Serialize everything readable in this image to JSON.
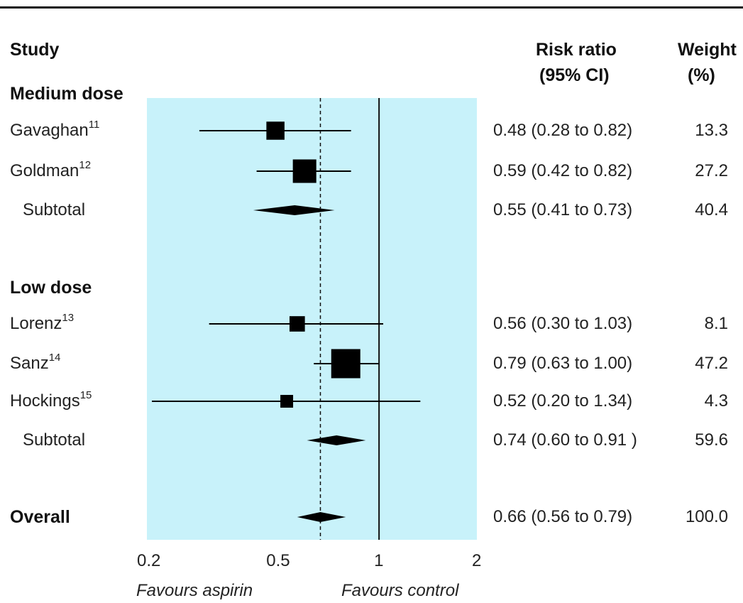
{
  "headers": {
    "study": "Study",
    "risk_ratio_line1": "Risk ratio",
    "risk_ratio_line2": "(95% CI)",
    "weight_line1": "Weight",
    "weight_line2": "(%)"
  },
  "chart_data": {
    "type": "forest",
    "scale": "log",
    "xlim": [
      0.2,
      2
    ],
    "xticks": [
      {
        "value": 0.2,
        "label": "0.2"
      },
      {
        "value": 0.5,
        "label": "0.5"
      },
      {
        "value": 1,
        "label": "1"
      },
      {
        "value": 2,
        "label": "2"
      }
    ],
    "null_line": 1,
    "pooled_line": 0.66,
    "left_label": "Favours aspirin",
    "right_label": "Favours control",
    "groups": [
      {
        "name": "Medium dose",
        "studies": [
          {
            "name": "Gavaghan",
            "ref": "11",
            "rr": 0.48,
            "lo": 0.28,
            "hi": 0.82,
            "ci_text": "0.48 (0.28 to 0.82)",
            "weight": "13.3",
            "w": 13.3
          },
          {
            "name": "Goldman",
            "ref": "12",
            "rr": 0.59,
            "lo": 0.42,
            "hi": 0.82,
            "ci_text": "0.59 (0.42 to 0.82)",
            "weight": "27.2",
            "w": 27.2
          }
        ],
        "subtotal": {
          "label": "Subtotal",
          "rr": 0.55,
          "lo": 0.41,
          "hi": 0.73,
          "ci_text": "0.55 (0.41 to 0.73)",
          "weight": "40.4"
        }
      },
      {
        "name": "Low dose",
        "studies": [
          {
            "name": "Lorenz",
            "ref": "13",
            "rr": 0.56,
            "lo": 0.3,
            "hi": 1.03,
            "ci_text": "0.56 (0.30 to 1.03)",
            "weight": "8.1",
            "w": 8.1
          },
          {
            "name": "Sanz",
            "ref": "14",
            "rr": 0.79,
            "lo": 0.63,
            "hi": 1.0,
            "ci_text": "0.79 (0.63 to 1.00)",
            "weight": "47.2",
            "w": 47.2
          },
          {
            "name": "Hockings",
            "ref": "15",
            "rr": 0.52,
            "lo": 0.2,
            "hi": 1.34,
            "ci_text": "0.52 (0.20 to 1.34)",
            "weight": "4.3",
            "w": 4.3
          }
        ],
        "subtotal": {
          "label": "Subtotal",
          "rr": 0.74,
          "lo": 0.6,
          "hi": 0.91,
          "ci_text": "0.74 (0.60 to 0.91 )",
          "weight": "59.6"
        }
      }
    ],
    "overall": {
      "label": "Overall",
      "rr": 0.66,
      "lo": 0.56,
      "hi": 0.79,
      "ci_text": "0.66 (0.56 to 0.79)",
      "weight": "100.0"
    },
    "colors": {
      "panel": "#c8f2fa",
      "marks": "#000000",
      "text": "#222222"
    }
  }
}
